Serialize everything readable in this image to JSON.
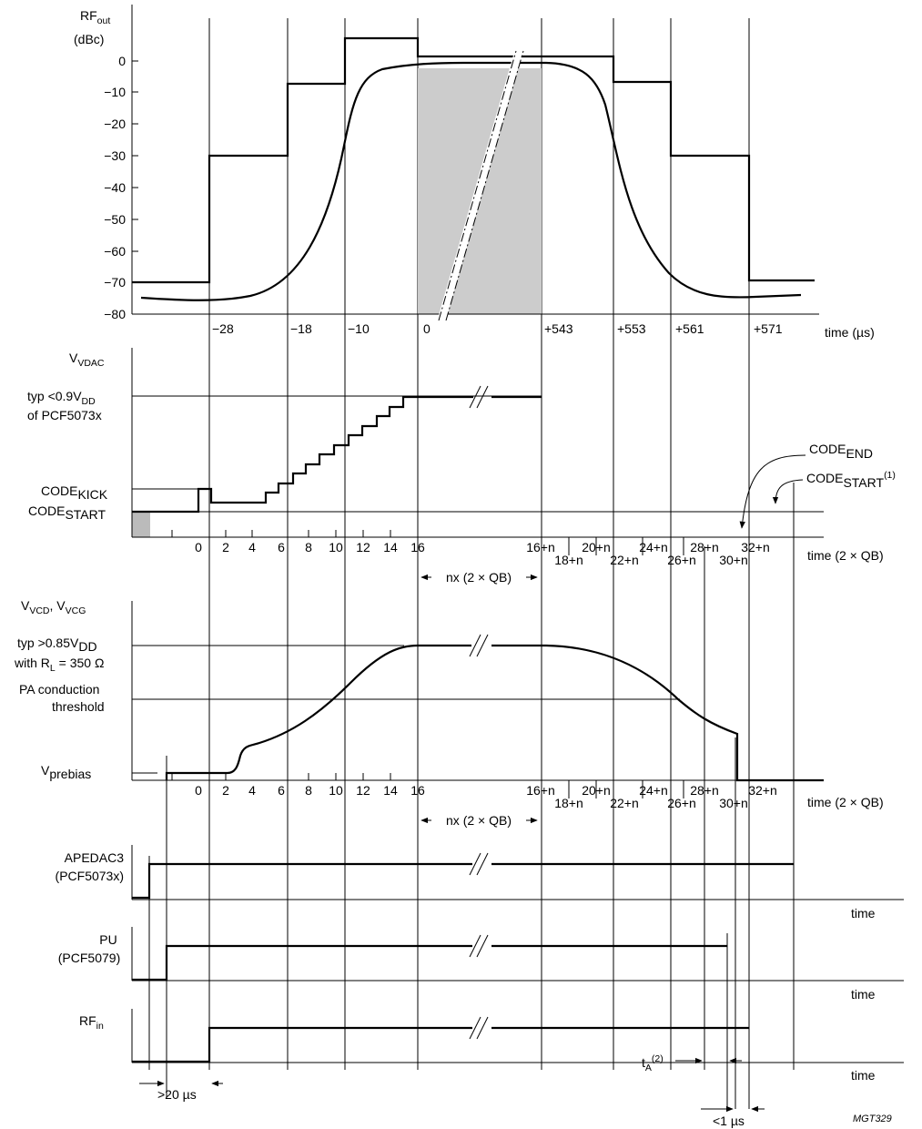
{
  "figure_id": "MGT329",
  "panel1": {
    "ylabel": "RF",
    "ylabel_sub": "out",
    "ylabel_unit": "(dBc)",
    "yticks": [
      "0",
      "−10",
      "−20",
      "−30",
      "−40",
      "−50",
      "−60",
      "−70",
      "−80"
    ],
    "xticks": [
      "−28",
      "−18",
      "−10",
      "0",
      "+543",
      "+553",
      "+561",
      "+571"
    ],
    "xlabel": "time (µs)"
  },
  "panel2": {
    "ylabel": "V",
    "ylabel_sub": "VDAC",
    "level_high_line1": "typ <0.9V",
    "level_high_sub": "DD",
    "level_high_line2": "of PCF5073x",
    "code_kick": "CODE",
    "code_kick_sub": "KICK",
    "code_start": "CODE",
    "code_start_sub": "START",
    "code_end_callout": "CODE",
    "code_end_callout_sub": "END",
    "code_start_callout": "CODE",
    "code_start_callout_sub": "START",
    "code_start_callout_note": "(1)",
    "xticks_top": [
      "0",
      "2",
      "4",
      "6",
      "8",
      "10",
      "12",
      "14",
      "16",
      "16+n",
      "20+n",
      "24+n",
      "28+n",
      "32+n"
    ],
    "xticks_bottom": [
      "18+n",
      "22+n",
      "26+n",
      "30+n"
    ],
    "xlabel": "time (2 × QB)",
    "span_label": "nx (2 × QB)"
  },
  "panel3": {
    "ylabel": "V",
    "ylabel_sub1": "VCD",
    "ylabel_sep": ", V",
    "ylabel_sub2": "VCG",
    "level_high_line1": "typ >0.85V",
    "level_high_sub": "DD",
    "level_high_line2": "with R",
    "level_high_line2_sub": "L",
    "level_high_line2_rest": " = 350 Ω",
    "threshold_line1": "PA conduction",
    "threshold_line2": "threshold",
    "prebias": "V",
    "prebias_sub": "prebias",
    "xticks_top": [
      "0",
      "2",
      "4",
      "6",
      "8",
      "10",
      "12",
      "14",
      "16",
      "16+n",
      "20+n",
      "24+n",
      "28+n",
      "32+n"
    ],
    "xticks_bottom": [
      "18+n",
      "22+n",
      "26+n",
      "30+n"
    ],
    "xlabel": "time (2 × QB)",
    "span_label": "nx (2 × QB)"
  },
  "panel4": {
    "label1": "APEDAC3",
    "label2": "(PCF5073x)",
    "xlabel": "time"
  },
  "panel5": {
    "label1": "PU",
    "label2": "(PCF5079)",
    "xlabel": "time"
  },
  "panel6": {
    "label": "RF",
    "label_sub": "in",
    "xlabel": "time"
  },
  "annotations": {
    "gt20": ">20 µs",
    "ta": "t",
    "ta_sub": "A",
    "ta_note": "(2)",
    "lt1": "<1 µs"
  }
}
